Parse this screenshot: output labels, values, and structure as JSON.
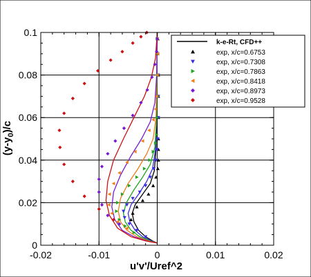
{
  "chart_data": {
    "type": "scatter",
    "title": "",
    "xlabel": "u'v'/Uref^2",
    "ylabel": "(y-y_0)/c",
    "xlim": [
      -0.02,
      0.02
    ],
    "ylim": [
      0,
      0.1
    ],
    "xticks": [
      -0.02,
      -0.01,
      0,
      0.01,
      0.02
    ],
    "xtick_labels": [
      "-0.02",
      "-0.01",
      "0",
      "0.01",
      "0.02"
    ],
    "yticks": [
      0,
      0.02,
      0.04,
      0.06,
      0.08,
      0.1
    ],
    "ytick_labels": [
      "0",
      "0.02",
      "0.04",
      "0.06",
      "0.08",
      "0.1"
    ],
    "grid": true,
    "legend": {
      "placement": "top-right",
      "line_entry": "k-e-Rt, CFD++",
      "entries": [
        "exp, x/c=0.6753",
        "exp, x/c=0.7308",
        "exp, x/c=0.7863",
        "exp, x/c=0.8418",
        "exp, x/c=0.8973",
        "exp, x/c=0.9528"
      ]
    },
    "series": [
      {
        "name": "exp, x/c=0.6753",
        "color": "#000000",
        "marker": "triangle-up",
        "cfd_curve": [
          [
            0,
            0.001
          ],
          [
            -0.0008,
            0.002
          ],
          [
            -0.002,
            0.004
          ],
          [
            -0.0032,
            0.007
          ],
          [
            -0.004,
            0.011
          ],
          [
            -0.0043,
            0.015
          ],
          [
            -0.0038,
            0.019
          ],
          [
            -0.0025,
            0.024
          ],
          [
            -0.0012,
            0.029
          ],
          [
            -0.0005,
            0.035
          ],
          [
            -0.0002,
            0.045
          ],
          [
            -0.0001,
            0.06
          ],
          [
            0,
            0.1
          ]
        ],
        "points": [
          [
            -0.0045,
            0.012
          ],
          [
            -0.0042,
            0.015
          ],
          [
            -0.0035,
            0.018
          ],
          [
            -0.0025,
            0.021
          ],
          [
            -0.0015,
            0.024
          ],
          [
            -0.0007,
            0.028
          ],
          [
            -0.0002,
            0.032
          ],
          [
            0.0001,
            0.036
          ],
          [
            0.0002,
            0.04
          ],
          [
            0.0002,
            0.045
          ],
          [
            0.0002,
            0.05
          ],
          [
            0.0002,
            0.06
          ],
          [
            0.0002,
            0.07
          ],
          [
            0.0002,
            0.08
          ],
          [
            0.0001,
            0.09
          ],
          [
            0.0001,
            0.097
          ]
        ]
      },
      {
        "name": "exp, x/c=0.7308",
        "color": "#3a2de0",
        "marker": "triangle-down",
        "cfd_curve": [
          [
            0,
            0.001
          ],
          [
            -0.001,
            0.002
          ],
          [
            -0.0025,
            0.004
          ],
          [
            -0.0038,
            0.007
          ],
          [
            -0.0047,
            0.011
          ],
          [
            -0.005,
            0.015
          ],
          [
            -0.0045,
            0.019
          ],
          [
            -0.0032,
            0.024
          ],
          [
            -0.0018,
            0.03
          ],
          [
            -0.0008,
            0.036
          ],
          [
            -0.0003,
            0.045
          ],
          [
            -0.0001,
            0.06
          ],
          [
            0,
            0.1
          ]
        ],
        "points": [
          [
            -0.002,
            0.004
          ],
          [
            -0.0035,
            0.007
          ],
          [
            -0.0048,
            0.01
          ],
          [
            -0.0056,
            0.013
          ],
          [
            -0.0058,
            0.016
          ],
          [
            -0.0052,
            0.019
          ],
          [
            -0.0042,
            0.022
          ],
          [
            -0.003,
            0.025
          ],
          [
            -0.002,
            0.028
          ],
          [
            -0.0012,
            0.032
          ],
          [
            -0.0006,
            0.036
          ],
          [
            -0.0002,
            0.04
          ],
          [
            0,
            0.045
          ],
          [
            0.0001,
            0.05
          ],
          [
            0.0002,
            0.06
          ],
          [
            0.0002,
            0.07
          ],
          [
            0.0002,
            0.08
          ],
          [
            0.0001,
            0.09
          ],
          [
            0,
            0.097
          ]
        ]
      },
      {
        "name": "exp, x/c=0.7863",
        "color": "#1fa51f",
        "marker": "triangle-right",
        "cfd_curve": [
          [
            0,
            0.001
          ],
          [
            -0.0012,
            0.002
          ],
          [
            -0.003,
            0.004
          ],
          [
            -0.0045,
            0.007
          ],
          [
            -0.0055,
            0.011
          ],
          [
            -0.0058,
            0.015
          ],
          [
            -0.0053,
            0.02
          ],
          [
            -0.004,
            0.026
          ],
          [
            -0.0025,
            0.032
          ],
          [
            -0.0012,
            0.038
          ],
          [
            -0.0004,
            0.046
          ],
          [
            -0.0001,
            0.06
          ],
          [
            0,
            0.1
          ]
        ],
        "points": [
          [
            -0.004,
            0.006
          ],
          [
            -0.0055,
            0.009
          ],
          [
            -0.0065,
            0.012
          ],
          [
            -0.007,
            0.016
          ],
          [
            -0.0068,
            0.02
          ],
          [
            -0.006,
            0.024
          ],
          [
            -0.0048,
            0.028
          ],
          [
            -0.0035,
            0.032
          ],
          [
            -0.0022,
            0.036
          ],
          [
            -0.0013,
            0.04
          ],
          [
            -0.0007,
            0.044
          ],
          [
            -0.0003,
            0.048
          ],
          [
            -0.0001,
            0.052
          ],
          [
            0,
            0.06
          ],
          [
            0.0001,
            0.07
          ],
          [
            0.0001,
            0.08
          ],
          [
            0.0001,
            0.09
          ],
          [
            0,
            0.097
          ]
        ]
      },
      {
        "name": "exp, x/c=0.8418",
        "color": "#f07c1a",
        "marker": "triangle-left",
        "cfd_curve": [
          [
            0,
            0.001
          ],
          [
            -0.0015,
            0.002
          ],
          [
            -0.0035,
            0.004
          ],
          [
            -0.0052,
            0.007
          ],
          [
            -0.0063,
            0.011
          ],
          [
            -0.0067,
            0.016
          ],
          [
            -0.0063,
            0.022
          ],
          [
            -0.005,
            0.029
          ],
          [
            -0.0033,
            0.036
          ],
          [
            -0.0018,
            0.043
          ],
          [
            -0.0007,
            0.05
          ],
          [
            -0.0002,
            0.06
          ],
          [
            0,
            0.1
          ]
        ],
        "points": [
          [
            -0.0052,
            0.008
          ],
          [
            -0.0068,
            0.011
          ],
          [
            -0.0078,
            0.015
          ],
          [
            -0.0083,
            0.019
          ],
          [
            -0.0082,
            0.024
          ],
          [
            -0.0075,
            0.029
          ],
          [
            -0.0065,
            0.034
          ],
          [
            -0.0052,
            0.039
          ],
          [
            -0.0038,
            0.044
          ],
          [
            -0.0025,
            0.049
          ],
          [
            -0.0014,
            0.054
          ],
          [
            -0.0007,
            0.059
          ],
          [
            -0.0003,
            0.064
          ],
          [
            -0.0001,
            0.07
          ],
          [
            0,
            0.08
          ],
          [
            0.0001,
            0.09
          ],
          [
            0,
            0.097
          ]
        ]
      },
      {
        "name": "exp, x/c=0.8973",
        "color": "#7a1ad0",
        "marker": "diamond",
        "cfd_curve": [
          [
            0,
            0.001
          ],
          [
            -0.0018,
            0.002
          ],
          [
            -0.004,
            0.004
          ],
          [
            -0.006,
            0.007
          ],
          [
            -0.0073,
            0.012
          ],
          [
            -0.0078,
            0.018
          ],
          [
            -0.0075,
            0.025
          ],
          [
            -0.0063,
            0.033
          ],
          [
            -0.0045,
            0.042
          ],
          [
            -0.0027,
            0.05
          ],
          [
            -0.0012,
            0.058
          ],
          [
            -0.0004,
            0.067
          ],
          [
            -0.0001,
            0.08
          ],
          [
            0,
            0.1
          ]
        ],
        "points": [
          [
            -0.0065,
            0.01
          ],
          [
            -0.0085,
            0.014
          ],
          [
            -0.0095,
            0.019
          ],
          [
            -0.01,
            0.025
          ],
          [
            -0.01,
            0.031
          ],
          [
            -0.0095,
            0.037
          ],
          [
            -0.0085,
            0.043
          ],
          [
            -0.0072,
            0.049
          ],
          [
            -0.0057,
            0.055
          ],
          [
            -0.0042,
            0.061
          ],
          [
            -0.0028,
            0.067
          ],
          [
            -0.0017,
            0.073
          ],
          [
            -0.0009,
            0.079
          ],
          [
            -0.0004,
            0.085
          ],
          [
            -0.0001,
            0.091
          ],
          [
            0,
            0.097
          ]
        ]
      },
      {
        "name": "exp, x/c=0.9528",
        "color": "#cc1010",
        "marker": "diamond",
        "cfd_curve": [
          [
            0,
            0.001
          ],
          [
            -0.002,
            0.002
          ],
          [
            -0.0045,
            0.004
          ],
          [
            -0.0068,
            0.008
          ],
          [
            -0.0082,
            0.014
          ],
          [
            -0.0088,
            0.021
          ],
          [
            -0.0085,
            0.03
          ],
          [
            -0.0075,
            0.04
          ],
          [
            -0.0058,
            0.05
          ],
          [
            -0.004,
            0.06
          ],
          [
            -0.0022,
            0.07
          ],
          [
            -0.001,
            0.079
          ],
          [
            -0.0003,
            0.088
          ],
          [
            0,
            0.1
          ]
        ],
        "points": [
          [
            -0.0075,
            0.012
          ],
          [
            -0.01,
            0.017
          ],
          [
            -0.0125,
            0.023
          ],
          [
            -0.0145,
            0.03
          ],
          [
            -0.016,
            0.038
          ],
          [
            -0.0167,
            0.046
          ],
          [
            -0.0168,
            0.054
          ],
          [
            -0.016,
            0.062
          ],
          [
            -0.0145,
            0.069
          ],
          [
            -0.0125,
            0.076
          ],
          [
            -0.0102,
            0.082
          ],
          [
            -0.008,
            0.087
          ],
          [
            -0.006,
            0.091
          ],
          [
            -0.0042,
            0.095
          ],
          [
            -0.0028,
            0.098
          ],
          [
            -0.0018,
            0.1
          ]
        ]
      }
    ]
  }
}
